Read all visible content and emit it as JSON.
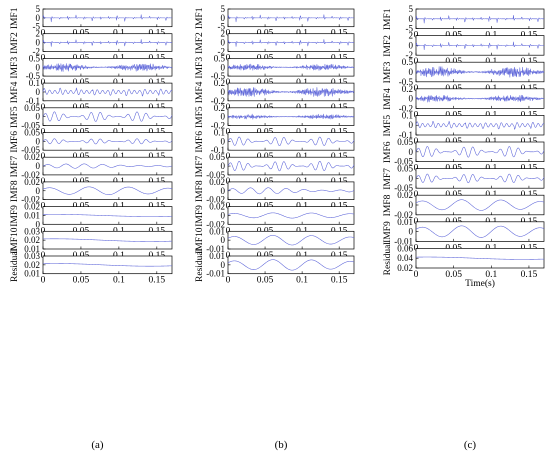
{
  "figure": {
    "trace_color": "#5a62d8",
    "panel_labels": [
      "(a)",
      "(b)",
      "(c)"
    ],
    "xlabel_c": "Time(s)"
  },
  "chart_data": [
    {
      "type": "line",
      "panel": "(a)",
      "x_ticks": [
        0,
        0.05,
        0.1,
        0.15
      ],
      "xlim": [
        0,
        0.17
      ],
      "rows": [
        {
          "ylabel": "IMF1",
          "yticks": [
            "5",
            "0",
            "-5"
          ],
          "ylim": [
            -5,
            5
          ],
          "kind": "impulse",
          "amp": 0.55
        },
        {
          "ylabel": "IMF2",
          "yticks": [
            "2",
            "0",
            "-2"
          ],
          "ylim": [
            -2,
            2
          ],
          "kind": "impulse",
          "amp": 0.55
        },
        {
          "ylabel": "IMF3",
          "yticks": [
            "0.5",
            "0",
            "-0.5"
          ],
          "ylim": [
            -0.5,
            0.5
          ],
          "kind": "noise",
          "amp": 0.5
        },
        {
          "ylabel": "IMF4",
          "yticks": [
            "0.1",
            "0",
            "-0.1"
          ],
          "ylim": [
            -0.1,
            0.1
          ],
          "kind": "burst",
          "amp": 0.5
        },
        {
          "ylabel": "IMF5",
          "yticks": [
            "0.05",
            "0",
            "-0.05"
          ],
          "ylim": [
            -0.05,
            0.05
          ],
          "kind": "modulated",
          "amp": 0.55
        },
        {
          "ylabel": "IMF6",
          "yticks": [
            "0.05",
            "0",
            "-0.05"
          ],
          "ylim": [
            -0.05,
            0.05
          ],
          "kind": "modulated",
          "amp": 0.3
        },
        {
          "ylabel": "IMF7",
          "yticks": [
            "0.02",
            "0",
            "-0.02"
          ],
          "ylim": [
            -0.02,
            0.02
          ],
          "kind": "wave",
          "amp": 0.25
        },
        {
          "ylabel": "IMF8",
          "yticks": [
            "0.02",
            "0",
            "-0.02"
          ],
          "ylim": [
            -0.02,
            0.02
          ],
          "kind": "slow",
          "amp": 0.45
        },
        {
          "ylabel": "IMF9",
          "yticks": [
            "0.02",
            "0.01",
            "0"
          ],
          "ylim": [
            0,
            0.02
          ],
          "kind": "trend",
          "amp": 0.12
        },
        {
          "ylabel": "IMF10",
          "yticks": [
            "0.03",
            "0.02",
            "0.01"
          ],
          "ylim": [
            0.01,
            0.03
          ],
          "kind": "trend",
          "amp": 0.15
        },
        {
          "ylabel": "Residual",
          "yticks": [
            "0.03",
            "0.02",
            "0.01"
          ],
          "ylim": [
            0.01,
            0.03
          ],
          "kind": "trend",
          "amp": 0.15
        }
      ]
    },
    {
      "type": "line",
      "panel": "(b)",
      "x_ticks": [
        0,
        0.05,
        0.1,
        0.15
      ],
      "xlim": [
        0,
        0.17
      ],
      "rows": [
        {
          "ylabel": "IMF1",
          "yticks": [
            "5",
            "0",
            "-5"
          ],
          "ylim": [
            -5,
            5
          ],
          "kind": "impulse",
          "amp": 0.55
        },
        {
          "ylabel": "IMF2",
          "yticks": [
            "2",
            "0",
            "-2"
          ],
          "ylim": [
            -2,
            2
          ],
          "kind": "impulse",
          "amp": 0.55
        },
        {
          "ylabel": "IMF3",
          "yticks": [
            "0.5",
            "0",
            "-0.5"
          ],
          "ylim": [
            -0.5,
            0.5
          ],
          "kind": "noise",
          "amp": 0.4
        },
        {
          "ylabel": "IMF4",
          "yticks": [
            "0.2",
            "0",
            "-0.2"
          ],
          "ylim": [
            -0.2,
            0.2
          ],
          "kind": "noise",
          "amp": 0.6
        },
        {
          "ylabel": "IMF5",
          "yticks": [
            "0.2",
            "0",
            "-0.2"
          ],
          "ylim": [
            -0.2,
            0.2
          ],
          "kind": "noise",
          "amp": 0.3
        },
        {
          "ylabel": "IMF6",
          "yticks": [
            "0.1",
            "0",
            "-0.1"
          ],
          "ylim": [
            -0.1,
            0.1
          ],
          "kind": "modulated",
          "amp": 0.5
        },
        {
          "ylabel": "IMF7",
          "yticks": [
            "0.05",
            "0",
            "-0.05"
          ],
          "ylim": [
            -0.05,
            0.05
          ],
          "kind": "modulated",
          "amp": 0.55
        },
        {
          "ylabel": "IMF8",
          "yticks": [
            "0.02",
            "0",
            "-0.02"
          ],
          "ylim": [
            -0.02,
            0.02
          ],
          "kind": "wave",
          "amp": 0.35
        },
        {
          "ylabel": "IMF9",
          "yticks": [
            "0.02",
            "0",
            "-0.02"
          ],
          "ylim": [
            -0.02,
            0.02
          ],
          "kind": "slow",
          "amp": 0.3
        },
        {
          "ylabel": "IMF10",
          "yticks": [
            "0.01",
            "0",
            "-0.01"
          ],
          "ylim": [
            -0.01,
            0.01
          ],
          "kind": "slow",
          "amp": 0.55
        },
        {
          "ylabel": "Residual",
          "yticks": [
            "0.01",
            "0",
            "-0.01"
          ],
          "ylim": [
            -0.01,
            0.01
          ],
          "kind": "slow",
          "amp": 0.6
        }
      ]
    },
    {
      "type": "line",
      "panel": "(c)",
      "x_ticks": [
        0,
        0.05,
        0.1,
        0.15
      ],
      "xlim": [
        0,
        0.17
      ],
      "xlabel": "Time(s)",
      "rows": [
        {
          "ylabel": "IMF1",
          "yticks": [
            "5",
            "0",
            "-5"
          ],
          "ylim": [
            -5,
            5
          ],
          "kind": "impulse",
          "amp": 0.55
        },
        {
          "ylabel": "IMF2",
          "yticks": [
            "2",
            "0",
            "-2"
          ],
          "ylim": [
            -2,
            2
          ],
          "kind": "impulse",
          "amp": 0.55
        },
        {
          "ylabel": "IMF3",
          "yticks": [
            "0.5",
            "0",
            "-0.5"
          ],
          "ylim": [
            -0.5,
            0.5
          ],
          "kind": "noise",
          "amp": 0.6
        },
        {
          "ylabel": "IMF4",
          "yticks": [
            "0.2",
            "0",
            "-0.2"
          ],
          "ylim": [
            -0.2,
            0.2
          ],
          "kind": "noise",
          "amp": 0.4
        },
        {
          "ylabel": "IMF5",
          "yticks": [
            "0.1",
            "0",
            "-0.1"
          ],
          "ylim": [
            -0.1,
            0.1
          ],
          "kind": "burst",
          "amp": 0.45
        },
        {
          "ylabel": "IMF6",
          "yticks": [
            "0.05",
            "0",
            "-0.05"
          ],
          "ylim": [
            -0.05,
            0.05
          ],
          "kind": "modulated",
          "amp": 0.55
        },
        {
          "ylabel": "IMF7",
          "yticks": [
            "0.05",
            "0",
            "-0.05"
          ],
          "ylim": [
            -0.05,
            0.05
          ],
          "kind": "modulated",
          "amp": 0.45
        },
        {
          "ylabel": "IMF8",
          "yticks": [
            "0.02",
            "0",
            "-0.02"
          ],
          "ylim": [
            -0.02,
            0.02
          ],
          "kind": "slow",
          "amp": 0.55
        },
        {
          "ylabel": "IMF9",
          "yticks": [
            "0.01",
            "0",
            "-0.01"
          ],
          "ylim": [
            -0.01,
            0.01
          ],
          "kind": "slow",
          "amp": 0.6
        },
        {
          "ylabel": "Residual",
          "yticks": [
            "0.06",
            "0.04",
            "0.02"
          ],
          "ylim": [
            0.02,
            0.06
          ],
          "kind": "trend",
          "amp": 0.12
        }
      ]
    }
  ]
}
